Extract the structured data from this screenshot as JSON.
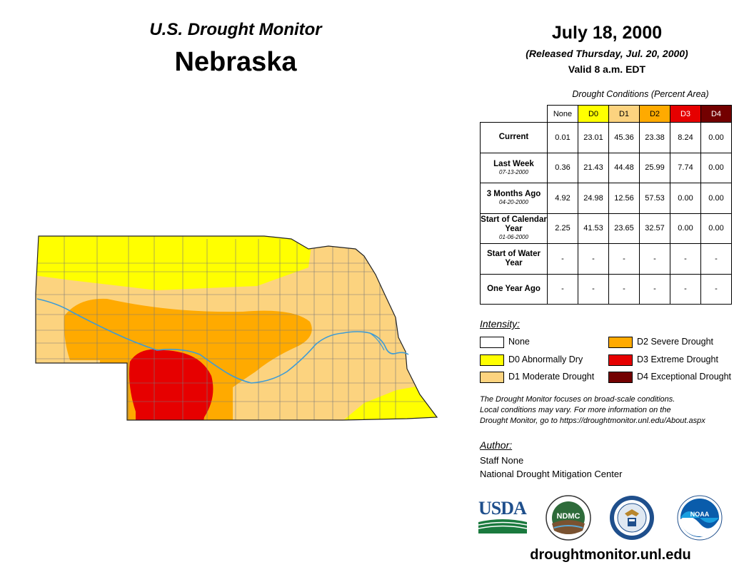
{
  "header": {
    "subtitle": "U.S. Drought Monitor",
    "state": "Nebraska",
    "date": "July 18, 2000",
    "released": "(Released Thursday, Jul. 20, 2000)",
    "valid": "Valid 8 a.m. EDT"
  },
  "table": {
    "caption": "Drought Conditions (Percent Area)",
    "columns": [
      "None",
      "D0",
      "D1",
      "D2",
      "D3",
      "D4"
    ],
    "rows": [
      {
        "label": "Current",
        "sub": "",
        "values": [
          "0.01",
          "23.01",
          "45.36",
          "23.38",
          "8.24",
          "0.00"
        ]
      },
      {
        "label": "Last Week",
        "sub": "07-13-2000",
        "values": [
          "0.36",
          "21.43",
          "44.48",
          "25.99",
          "7.74",
          "0.00"
        ]
      },
      {
        "label": "3 Months Ago",
        "sub": "04-20-2000",
        "values": [
          "4.92",
          "24.98",
          "12.56",
          "57.53",
          "0.00",
          "0.00"
        ]
      },
      {
        "label": "Start of Calendar Year",
        "sub": "01-06-2000",
        "values": [
          "2.25",
          "41.53",
          "23.65",
          "32.57",
          "0.00",
          "0.00"
        ]
      },
      {
        "label": "Start of Water Year",
        "sub": "",
        "values": [
          "-",
          "-",
          "-",
          "-",
          "-",
          "-"
        ]
      },
      {
        "label": "One Year Ago",
        "sub": "",
        "values": [
          "-",
          "-",
          "-",
          "-",
          "-",
          "-"
        ]
      }
    ]
  },
  "legend": {
    "title": "Intensity:",
    "items": [
      {
        "label": "None",
        "color": "#ffffff"
      },
      {
        "label": "D0 Abnormally Dry",
        "color": "#ffff00"
      },
      {
        "label": "D1 Moderate Drought",
        "color": "#fcd37f"
      },
      {
        "label": "D2 Severe Drought",
        "color": "#ffaa00"
      },
      {
        "label": "D3 Extreme Drought",
        "color": "#e60000"
      },
      {
        "label": "D4 Exceptional Drought",
        "color": "#730000"
      }
    ]
  },
  "note": {
    "line1": "The Drought Monitor focuses on broad-scale conditions.",
    "line2": "Local conditions may vary. For more information on the",
    "line3": "Drought Monitor, go to https://droughtmonitor.unl.edu/About.aspx"
  },
  "author": {
    "title": "Author:",
    "name": "Staff None",
    "org": "National Drought Mitigation Center"
  },
  "logos": {
    "usda": "USDA",
    "ndmc": "NDMC",
    "noaa": "NOAA"
  },
  "website": "droughtmonitor.unl.edu",
  "colors": {
    "none": "#ffffff",
    "d0": "#ffff00",
    "d1": "#fcd37f",
    "d2": "#ffaa00",
    "d3": "#e60000",
    "d4": "#730000",
    "river": "#3d9bd6"
  }
}
